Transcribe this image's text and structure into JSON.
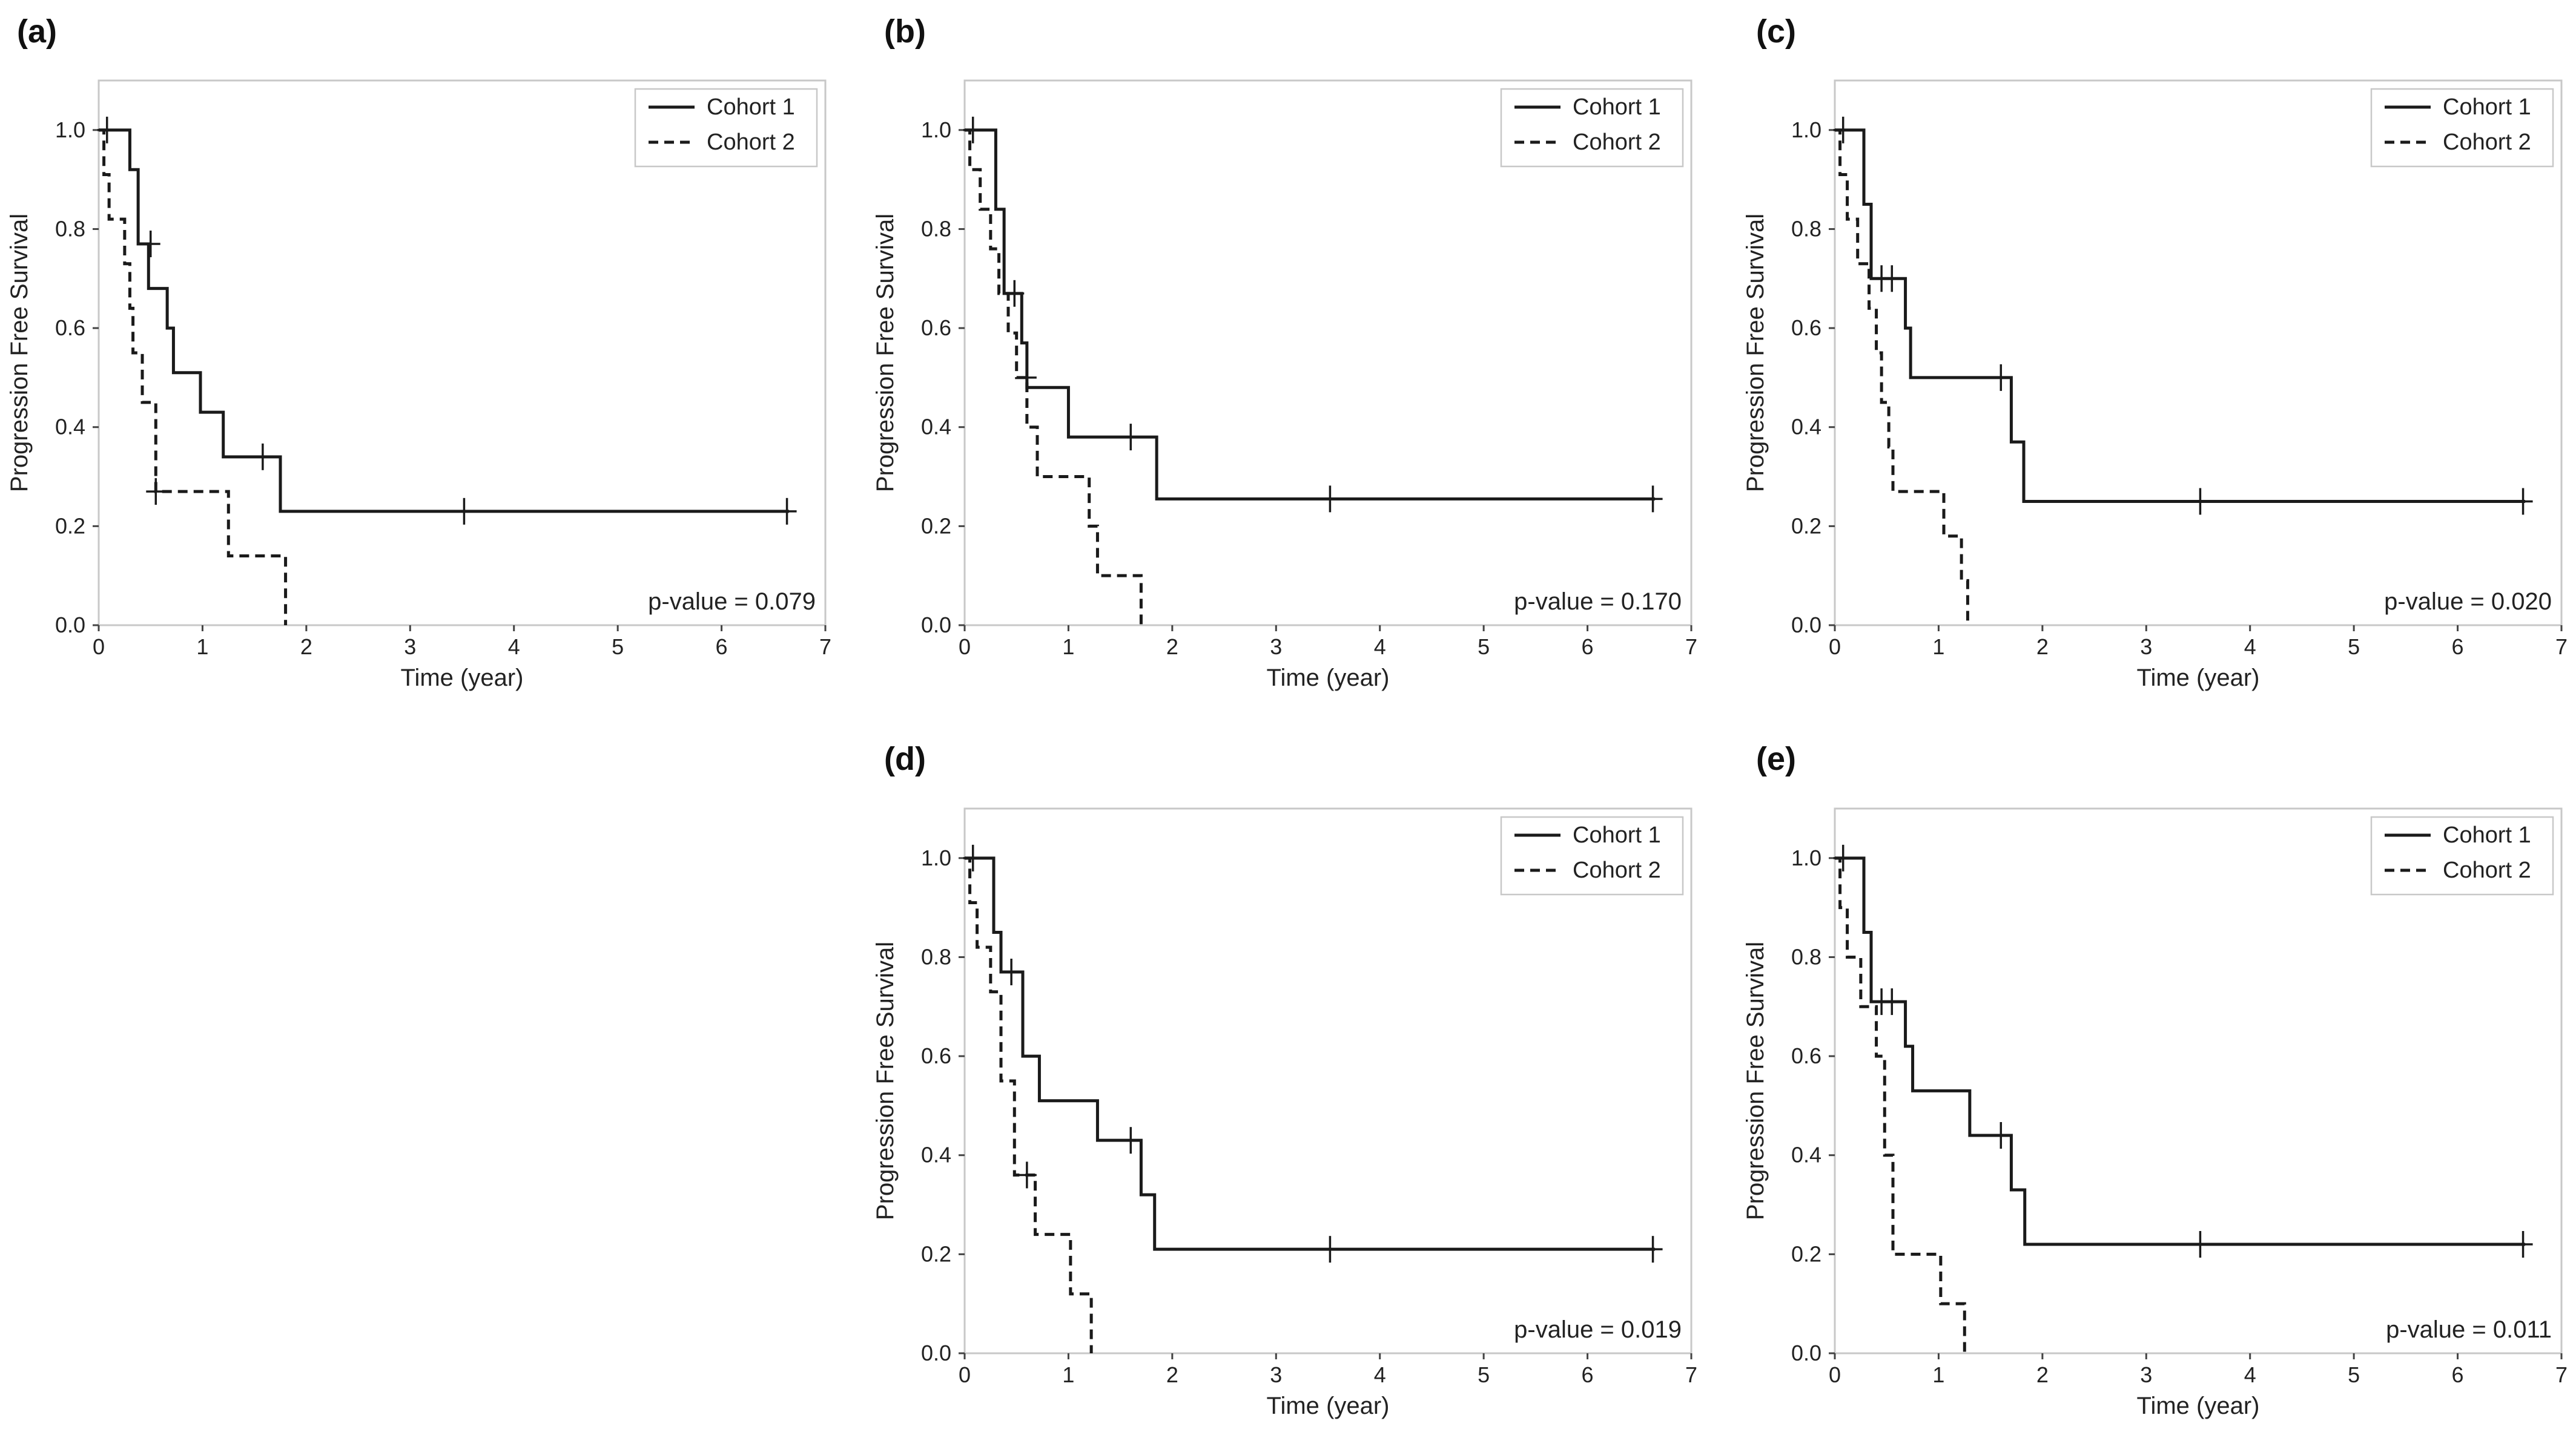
{
  "chart_data": [
    {
      "type": "line",
      "panel_label": "(a)",
      "xlabel": "Time (year)",
      "ylabel": "Progression Free Survival",
      "xlim": [
        0,
        7
      ],
      "ylim": [
        0,
        1.1
      ],
      "xticks": [
        "0",
        "1",
        "2",
        "3",
        "4",
        "5",
        "6",
        "7"
      ],
      "yticks": [
        "0.0",
        "0.2",
        "0.4",
        "0.6",
        "0.8",
        "1.0"
      ],
      "grid": false,
      "legend_position": "top-right",
      "annotation": "p-value = 0.079",
      "series": [
        {
          "name": "Cohort 1",
          "style": "solid",
          "steps": [
            [
              0,
              1.0
            ],
            [
              0.3,
              0.92
            ],
            [
              0.38,
              0.77
            ],
            [
              0.48,
              0.68
            ],
            [
              0.66,
              0.6
            ],
            [
              0.72,
              0.51
            ],
            [
              0.98,
              0.43
            ],
            [
              1.2,
              0.34
            ],
            [
              1.75,
              0.23
            ],
            [
              6.65,
              0.23
            ]
          ],
          "censored": [
            [
              0.08,
              1.0
            ],
            [
              0.5,
              0.77
            ],
            [
              1.58,
              0.34
            ],
            [
              3.52,
              0.23
            ],
            [
              6.63,
              0.23
            ]
          ]
        },
        {
          "name": "Cohort 2",
          "style": "dashed",
          "steps": [
            [
              0,
              1.0
            ],
            [
              0.05,
              0.91
            ],
            [
              0.1,
              0.82
            ],
            [
              0.25,
              0.73
            ],
            [
              0.3,
              0.64
            ],
            [
              0.33,
              0.55
            ],
            [
              0.42,
              0.45
            ],
            [
              0.55,
              0.27
            ],
            [
              1.25,
              0.14
            ],
            [
              1.8,
              0.0
            ]
          ],
          "censored": [
            [
              0.55,
              0.27
            ]
          ]
        }
      ]
    },
    {
      "type": "line",
      "panel_label": "(b)",
      "xlabel": "Time (year)",
      "ylabel": "Progression Free Survival",
      "xlim": [
        0,
        7
      ],
      "ylim": [
        0,
        1.1
      ],
      "xticks": [
        "0",
        "1",
        "2",
        "3",
        "4",
        "5",
        "6",
        "7"
      ],
      "yticks": [
        "0.0",
        "0.2",
        "0.4",
        "0.6",
        "0.8",
        "1.0"
      ],
      "grid": false,
      "legend_position": "top-right",
      "annotation": "p-value = 0.170",
      "series": [
        {
          "name": "Cohort 1",
          "style": "solid",
          "steps": [
            [
              0,
              1.0
            ],
            [
              0.3,
              0.84
            ],
            [
              0.38,
              0.67
            ],
            [
              0.55,
              0.57
            ],
            [
              0.6,
              0.48
            ],
            [
              1.0,
              0.38
            ],
            [
              1.85,
              0.255
            ],
            [
              6.65,
              0.255
            ]
          ],
          "censored": [
            [
              0.08,
              1.0
            ],
            [
              0.48,
              0.67
            ],
            [
              1.6,
              0.38
            ],
            [
              3.52,
              0.255
            ],
            [
              6.63,
              0.255
            ]
          ]
        },
        {
          "name": "Cohort 2",
          "style": "dashed",
          "steps": [
            [
              0,
              1.0
            ],
            [
              0.05,
              0.92
            ],
            [
              0.15,
              0.84
            ],
            [
              0.25,
              0.76
            ],
            [
              0.33,
              0.67
            ],
            [
              0.42,
              0.59
            ],
            [
              0.5,
              0.5
            ],
            [
              0.6,
              0.4
            ],
            [
              0.7,
              0.3
            ],
            [
              1.2,
              0.2
            ],
            [
              1.28,
              0.1
            ],
            [
              1.7,
              0.0
            ]
          ],
          "censored": [
            [
              0.6,
              0.5
            ]
          ]
        }
      ]
    },
    {
      "type": "line",
      "panel_label": "(c)",
      "xlabel": "Time (year)",
      "ylabel": "Progression Free Survival",
      "xlim": [
        0,
        7
      ],
      "ylim": [
        0,
        1.1
      ],
      "xticks": [
        "0",
        "1",
        "2",
        "3",
        "4",
        "5",
        "6",
        "7"
      ],
      "yticks": [
        "0.0",
        "0.2",
        "0.4",
        "0.6",
        "0.8",
        "1.0"
      ],
      "grid": false,
      "legend_position": "top-right",
      "annotation": "p-value = 0.020",
      "series": [
        {
          "name": "Cohort 1",
          "style": "solid",
          "steps": [
            [
              0,
              1.0
            ],
            [
              0.28,
              0.85
            ],
            [
              0.35,
              0.7
            ],
            [
              0.68,
              0.6
            ],
            [
              0.73,
              0.5
            ],
            [
              1.7,
              0.37
            ],
            [
              1.82,
              0.25
            ],
            [
              6.65,
              0.25
            ]
          ],
          "censored": [
            [
              0.08,
              1.0
            ],
            [
              0.45,
              0.7
            ],
            [
              0.55,
              0.7
            ],
            [
              1.6,
              0.5
            ],
            [
              3.52,
              0.25
            ],
            [
              6.63,
              0.25
            ]
          ]
        },
        {
          "name": "Cohort 2",
          "style": "dashed",
          "steps": [
            [
              0,
              1.0
            ],
            [
              0.05,
              0.91
            ],
            [
              0.12,
              0.82
            ],
            [
              0.22,
              0.73
            ],
            [
              0.33,
              0.64
            ],
            [
              0.4,
              0.55
            ],
            [
              0.45,
              0.45
            ],
            [
              0.52,
              0.36
            ],
            [
              0.56,
              0.27
            ],
            [
              1.05,
              0.18
            ],
            [
              1.22,
              0.09
            ],
            [
              1.28,
              0.0
            ]
          ],
          "censored": []
        }
      ]
    },
    {
      "type": "line",
      "panel_label": "(d)",
      "xlabel": "Time (year)",
      "ylabel": "Progression Free Survival",
      "xlim": [
        0,
        7
      ],
      "ylim": [
        0,
        1.1
      ],
      "xticks": [
        "0",
        "1",
        "2",
        "3",
        "4",
        "5",
        "6",
        "7"
      ],
      "yticks": [
        "0.0",
        "0.2",
        "0.4",
        "0.6",
        "0.8",
        "1.0"
      ],
      "grid": false,
      "legend_position": "top-right",
      "annotation": "p-value = 0.019",
      "series": [
        {
          "name": "Cohort 1",
          "style": "solid",
          "steps": [
            [
              0,
              1.0
            ],
            [
              0.28,
              0.85
            ],
            [
              0.35,
              0.77
            ],
            [
              0.56,
              0.6
            ],
            [
              0.72,
              0.51
            ],
            [
              1.28,
              0.43
            ],
            [
              1.7,
              0.32
            ],
            [
              1.83,
              0.21
            ],
            [
              6.65,
              0.21
            ]
          ],
          "censored": [
            [
              0.08,
              1.0
            ],
            [
              0.45,
              0.77
            ],
            [
              1.6,
              0.43
            ],
            [
              3.52,
              0.21
            ],
            [
              6.63,
              0.21
            ]
          ]
        },
        {
          "name": "Cohort 2",
          "style": "dashed",
          "steps": [
            [
              0,
              1.0
            ],
            [
              0.05,
              0.91
            ],
            [
              0.12,
              0.82
            ],
            [
              0.25,
              0.73
            ],
            [
              0.35,
              0.55
            ],
            [
              0.48,
              0.36
            ],
            [
              0.68,
              0.24
            ],
            [
              1.02,
              0.12
            ],
            [
              1.22,
              0.0
            ]
          ],
          "censored": [
            [
              0.6,
              0.36
            ]
          ]
        }
      ]
    },
    {
      "type": "line",
      "panel_label": "(e)",
      "xlabel": "Time (year)",
      "ylabel": "Progression Free Survival",
      "xlim": [
        0,
        7
      ],
      "ylim": [
        0,
        1.1
      ],
      "xticks": [
        "0",
        "1",
        "2",
        "3",
        "4",
        "5",
        "6",
        "7"
      ],
      "yticks": [
        "0.0",
        "0.2",
        "0.4",
        "0.6",
        "0.8",
        "1.0"
      ],
      "grid": false,
      "legend_position": "top-right",
      "annotation": "p-value = 0.011",
      "series": [
        {
          "name": "Cohort 1",
          "style": "solid",
          "steps": [
            [
              0,
              1.0
            ],
            [
              0.28,
              0.85
            ],
            [
              0.35,
              0.71
            ],
            [
              0.68,
              0.62
            ],
            [
              0.75,
              0.53
            ],
            [
              1.3,
              0.44
            ],
            [
              1.7,
              0.33
            ],
            [
              1.83,
              0.22
            ],
            [
              6.65,
              0.22
            ]
          ],
          "censored": [
            [
              0.08,
              1.0
            ],
            [
              0.45,
              0.71
            ],
            [
              0.55,
              0.71
            ],
            [
              1.6,
              0.44
            ],
            [
              3.52,
              0.22
            ],
            [
              6.63,
              0.22
            ]
          ]
        },
        {
          "name": "Cohort 2",
          "style": "dashed",
          "steps": [
            [
              0,
              1.0
            ],
            [
              0.05,
              0.9
            ],
            [
              0.12,
              0.8
            ],
            [
              0.25,
              0.7
            ],
            [
              0.4,
              0.6
            ],
            [
              0.48,
              0.4
            ],
            [
              0.56,
              0.2
            ],
            [
              1.02,
              0.1
            ],
            [
              1.25,
              0.0
            ]
          ],
          "censored": []
        }
      ]
    }
  ]
}
